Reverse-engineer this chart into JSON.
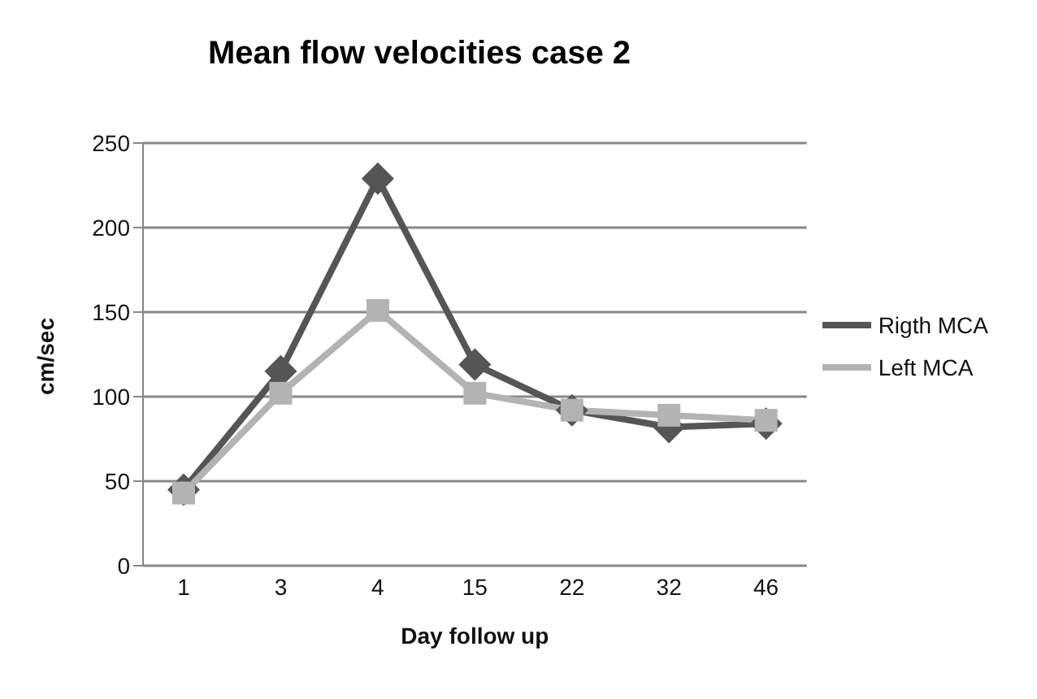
{
  "chart_data": {
    "type": "line",
    "title": "Mean flow velocities case 2",
    "xlabel": "Day follow up",
    "ylabel": "cm/sec",
    "categories": [
      "1",
      "3",
      "4",
      "15",
      "22",
      "32",
      "46"
    ],
    "series": [
      {
        "name": "Rigth MCA",
        "color": "#555555",
        "marker": "diamond",
        "values": [
          45,
          115,
          229,
          119,
          92,
          82,
          84
        ]
      },
      {
        "name": "Left MCA",
        "color": "#b3b3b3",
        "marker": "square",
        "values": [
          43,
          102,
          151,
          102,
          92,
          89,
          86
        ]
      }
    ],
    "ylim": [
      0,
      250
    ],
    "yticks": [
      0,
      50,
      100,
      150,
      200,
      250
    ],
    "grid": "y",
    "legend": "right"
  }
}
